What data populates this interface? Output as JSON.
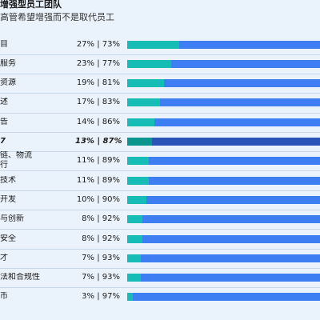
{
  "header": {
    "title": "增强型员工团队",
    "subtitle": "高管希望增强而不是取代员工"
  },
  "chart_data": {
    "type": "bar",
    "stacked": true,
    "orientation": "horizontal",
    "rows": [
      {
        "label": "目",
        "value_text": "27% | 73%",
        "a": 27,
        "b": 73,
        "highlight": false
      },
      {
        "label": "服务",
        "value_text": "23% | 77%",
        "a": 23,
        "b": 77,
        "highlight": false
      },
      {
        "label": "资源",
        "value_text": "19% | 81%",
        "a": 19,
        "b": 81,
        "highlight": false
      },
      {
        "label": "述",
        "value_text": "17% | 83%",
        "a": 17,
        "b": 83,
        "highlight": false
      },
      {
        "label": "告",
        "value_text": "14% | 86%",
        "a": 14,
        "b": 86,
        "highlight": false
      },
      {
        "label": "7",
        "value_text": "13% | 87%",
        "a": 13,
        "b": 87,
        "highlight": true
      },
      {
        "label": "链、物流\n行",
        "value_text": "11% | 89%",
        "a": 11,
        "b": 89,
        "highlight": false
      },
      {
        "label": "技术",
        "value_text": "11% | 89%",
        "a": 11,
        "b": 89,
        "highlight": false
      },
      {
        "label": "开发",
        "value_text": "10% | 90%",
        "a": 10,
        "b": 90,
        "highlight": false
      },
      {
        "label": "与创新",
        "value_text": "8% | 92%",
        "a": 8,
        "b": 92,
        "highlight": false
      },
      {
        "label": "安全",
        "value_text": "8% | 92%",
        "a": 8,
        "b": 92,
        "highlight": false
      },
      {
        "label": "才",
        "value_text": "7% | 93%",
        "a": 7,
        "b": 93,
        "highlight": false
      },
      {
        "label": "法和合规性",
        "value_text": "7% | 93%",
        "a": 7,
        "b": 93,
        "highlight": false
      },
      {
        "label": "币",
        "value_text": "3% | 97%",
        "a": 3,
        "b": 97,
        "highlight": false
      }
    ],
    "colors": {
      "segment_a": "#16bdb6",
      "segment_b": "#3d7ff2",
      "segment_a_highlight": "#0a958f",
      "segment_b_highlight": "#2a54b8"
    }
  }
}
